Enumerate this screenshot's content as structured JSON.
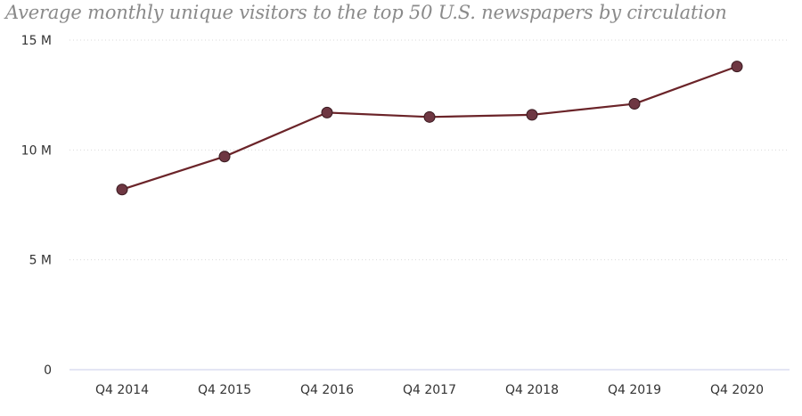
{
  "chart_data": {
    "type": "line",
    "title": "Average monthly unique visitors to the top 50 U.S. newspapers by circulation",
    "categories": [
      "Q4 2014",
      "Q4 2015",
      "Q4 2016",
      "Q4 2017",
      "Q4 2018",
      "Q4 2019",
      "Q4 2020"
    ],
    "series": [
      {
        "values": [
          8.2,
          9.7,
          11.7,
          11.5,
          11.6,
          12.1,
          13.8
        ]
      }
    ],
    "y_ticks": [
      {
        "value": 0,
        "label": "0"
      },
      {
        "value": 5,
        "label": "5 M"
      },
      {
        "value": 10,
        "label": "10 M"
      },
      {
        "value": 15,
        "label": "15 M"
      }
    ],
    "ylim": [
      0,
      15
    ],
    "grid": true,
    "colors": {
      "line": "#6b2429",
      "marker_fill": "#6e3742",
      "marker_stroke": "#3a1a20",
      "grid": "#d9d9d9",
      "baseline": "#c9cce8"
    }
  }
}
